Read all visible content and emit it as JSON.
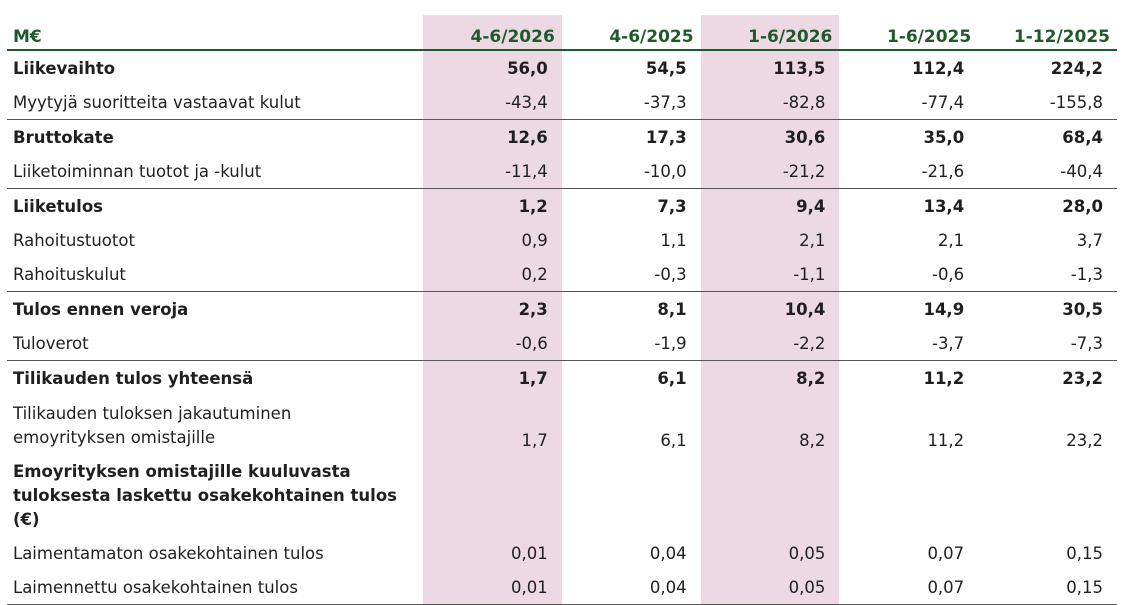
{
  "table": {
    "header": {
      "label": "M€",
      "columns": [
        "4-6/2026",
        "4-6/2025",
        "1-6/2026",
        "1-6/2025",
        "1-12/2025"
      ],
      "highlighted_columns": [
        0,
        2
      ],
      "highlight_color": "#ecd9e4",
      "header_color": "#1f5a2a"
    },
    "rows": [
      {
        "label": "Liikevaihto",
        "values": [
          "56,0",
          "54,5",
          "113,5",
          "112,4",
          "224,2"
        ],
        "bold": true
      },
      {
        "label": "Myytyjä suoritteita vastaavat kulut",
        "values": [
          "-43,4",
          "-37,3",
          "-82,8",
          "-77,4",
          "-155,8"
        ],
        "bold": false
      },
      {
        "label": "Bruttokate",
        "values": [
          "12,6",
          "17,3",
          "30,6",
          "35,0",
          "68,4"
        ],
        "bold": true
      },
      {
        "label": "Liiketoiminnan tuotot ja -kulut",
        "values": [
          "-11,4",
          "-10,0",
          "-21,2",
          "-21,6",
          "-40,4"
        ],
        "bold": false
      },
      {
        "label": "Liiketulos",
        "values": [
          "1,2",
          "7,3",
          "9,4",
          "13,4",
          "28,0"
        ],
        "bold": true
      },
      {
        "label": "Rahoitustuotot",
        "values": [
          "0,9",
          "1,1",
          "2,1",
          "2,1",
          "3,7"
        ],
        "bold": false
      },
      {
        "label": "Rahoituskulut",
        "values": [
          "0,2",
          "-0,3",
          "-1,1",
          "-0,6",
          "-1,3"
        ],
        "bold": false
      },
      {
        "label": "Tulos ennen veroja",
        "values": [
          "2,3",
          "8,1",
          "10,4",
          "14,9",
          "30,5"
        ],
        "bold": true
      },
      {
        "label": "Tuloverot",
        "values": [
          "-0,6",
          "-1,9",
          "-2,2",
          "-3,7",
          "-7,3"
        ],
        "bold": false
      },
      {
        "label": "Tilikauden tulos yhteensä",
        "values": [
          "1,7",
          "6,1",
          "8,2",
          "11,2",
          "23,2"
        ],
        "bold": true
      },
      {
        "label_line1": "Tilikauden tuloksen jakautuminen",
        "label_line2": "emoyrityksen omistajille",
        "values": [
          "1,7",
          "6,1",
          "8,2",
          "11,2",
          "23,2"
        ],
        "bold": false
      },
      {
        "label_line1": "Emoyrityksen omistajille kuuluvasta",
        "label_line2": "tuloksesta laskettu osakekohtainen tulos (€)",
        "values": [
          "",
          "",
          "",
          "",
          ""
        ],
        "bold": true
      },
      {
        "label": "Laimentamaton osakekohtainen tulos",
        "values": [
          "0,01",
          "0,04",
          "0,05",
          "0,07",
          "0,15"
        ],
        "bold": false
      },
      {
        "label": "Laimennettu osakekohtainen tulos",
        "values": [
          "0,01",
          "0,04",
          "0,05",
          "0,07",
          "0,15"
        ],
        "bold": false
      }
    ]
  }
}
